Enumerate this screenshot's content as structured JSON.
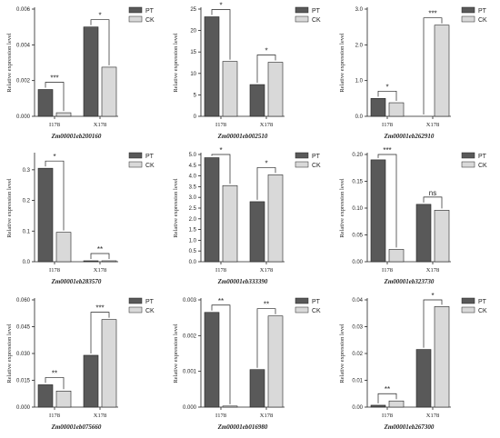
{
  "colors": {
    "PT": "#595959",
    "CK": "#d9d9d9",
    "stroke": "#222222"
  },
  "legend_labels": [
    "PT",
    "CK"
  ],
  "chart_data": [
    {
      "type": "bar",
      "title": "Zm00001eb200160",
      "ylabel": "Relative expression level",
      "categories": [
        "I178",
        "X178"
      ],
      "ylim": [
        0,
        0.006
      ],
      "ticks": [
        "0.000",
        "0.002",
        "0.004",
        "0.006"
      ],
      "series": [
        {
          "name": "PT",
          "values": [
            0.0015,
            0.005
          ]
        },
        {
          "name": "CK",
          "values": [
            0.0002,
            0.00275
          ]
        }
      ],
      "significance": [
        "***",
        "*"
      ]
    },
    {
      "type": "bar",
      "title": "Zm00001eb002510",
      "ylabel": "Relative expression level",
      "categories": [
        "I178",
        "X178"
      ],
      "ylim": [
        0,
        25
      ],
      "ticks": [
        "0",
        "5",
        "10",
        "15",
        "20",
        "25"
      ],
      "series": [
        {
          "name": "PT",
          "values": [
            23.2,
            7.4
          ]
        },
        {
          "name": "CK",
          "values": [
            12.8,
            12.6
          ]
        }
      ],
      "significance": [
        "*",
        "*"
      ]
    },
    {
      "type": "bar",
      "title": "Zm00001eb262910",
      "ylabel": "Relative expression level",
      "categories": [
        "I178",
        "X178"
      ],
      "ylim": [
        0,
        3.0
      ],
      "ticks": [
        "0.0",
        "1.0",
        "2.0",
        "3.0"
      ],
      "series": [
        {
          "name": "PT",
          "values": [
            0.5,
            0.0
          ]
        },
        {
          "name": "CK",
          "values": [
            0.38,
            2.55
          ]
        }
      ],
      "significance": [
        "*",
        "***"
      ]
    },
    {
      "type": "bar",
      "title": "Zm00001eb283570",
      "ylabel": "Relative expression level",
      "categories": [
        "I178",
        "X178"
      ],
      "ylim": [
        0,
        0.35
      ],
      "ticks": [
        "0.0",
        "0.1",
        "0.2",
        "0.3"
      ],
      "series": [
        {
          "name": "PT",
          "values": [
            0.305,
            0.003
          ]
        },
        {
          "name": "CK",
          "values": [
            0.096,
            0.003
          ]
        }
      ],
      "significance": [
        "*",
        "**"
      ]
    },
    {
      "type": "bar",
      "title": "Zm00001eb333390",
      "ylabel": "Relative expression level",
      "categories": [
        "I178",
        "X178"
      ],
      "ylim": [
        0,
        5.0
      ],
      "ticks": [
        "0.0",
        "0.5",
        "1.0",
        "1.5",
        "2.0",
        "2.5",
        "3.0",
        "3.5",
        "4.0",
        "4.5",
        "5.0"
      ],
      "series": [
        {
          "name": "PT",
          "values": [
            4.85,
            2.8
          ]
        },
        {
          "name": "CK",
          "values": [
            3.55,
            4.05
          ]
        }
      ],
      "significance": [
        "*",
        "*"
      ]
    },
    {
      "type": "bar",
      "title": "Zm00001eb323730",
      "ylabel": "Relative expression level",
      "categories": [
        "I178",
        "X178"
      ],
      "ylim": [
        0,
        0.2
      ],
      "ticks": [
        "0.00",
        "0.05",
        "0.10",
        "0.15",
        "0.20"
      ],
      "series": [
        {
          "name": "PT",
          "values": [
            0.19,
            0.107
          ]
        },
        {
          "name": "CK",
          "values": [
            0.023,
            0.096
          ]
        }
      ],
      "significance": [
        "***",
        "ns"
      ]
    },
    {
      "type": "bar",
      "title": "Zm00001eb075660",
      "ylabel": "Relative expression level",
      "categories": [
        "I178",
        "X178"
      ],
      "ylim": [
        0,
        0.06
      ],
      "ticks": [
        "0.000",
        "0.015",
        "0.030",
        "0.045",
        "0.060"
      ],
      "series": [
        {
          "name": "PT",
          "values": [
            0.0125,
            0.029
          ]
        },
        {
          "name": "CK",
          "values": [
            0.009,
            0.049
          ]
        }
      ],
      "significance": [
        "**",
        "***"
      ]
    },
    {
      "type": "bar",
      "title": "Zm00001eb016980",
      "ylabel": "Relative expression level",
      "categories": [
        "I178",
        "X178"
      ],
      "ylim": [
        0,
        0.003
      ],
      "ticks": [
        "0.000",
        "0.001",
        "0.002",
        "0.003"
      ],
      "series": [
        {
          "name": "PT",
          "values": [
            0.00265,
            0.00105
          ]
        },
        {
          "name": "CK",
          "values": [
            3e-05,
            0.00255
          ]
        }
      ],
      "significance": [
        "**",
        "**"
      ]
    },
    {
      "type": "bar",
      "title": "Zm00001eb267300",
      "ylabel": "Relative expression level",
      "categories": [
        "I178",
        "X178"
      ],
      "ylim": [
        0,
        0.04
      ],
      "ticks": [
        "0.00",
        "0.01",
        "0.02",
        "0.03",
        "0.04"
      ],
      "series": [
        {
          "name": "PT",
          "values": [
            0.0007,
            0.0215
          ]
        },
        {
          "name": "CK",
          "values": [
            0.0023,
            0.0375
          ]
        }
      ],
      "significance": [
        "**",
        "*"
      ]
    }
  ]
}
